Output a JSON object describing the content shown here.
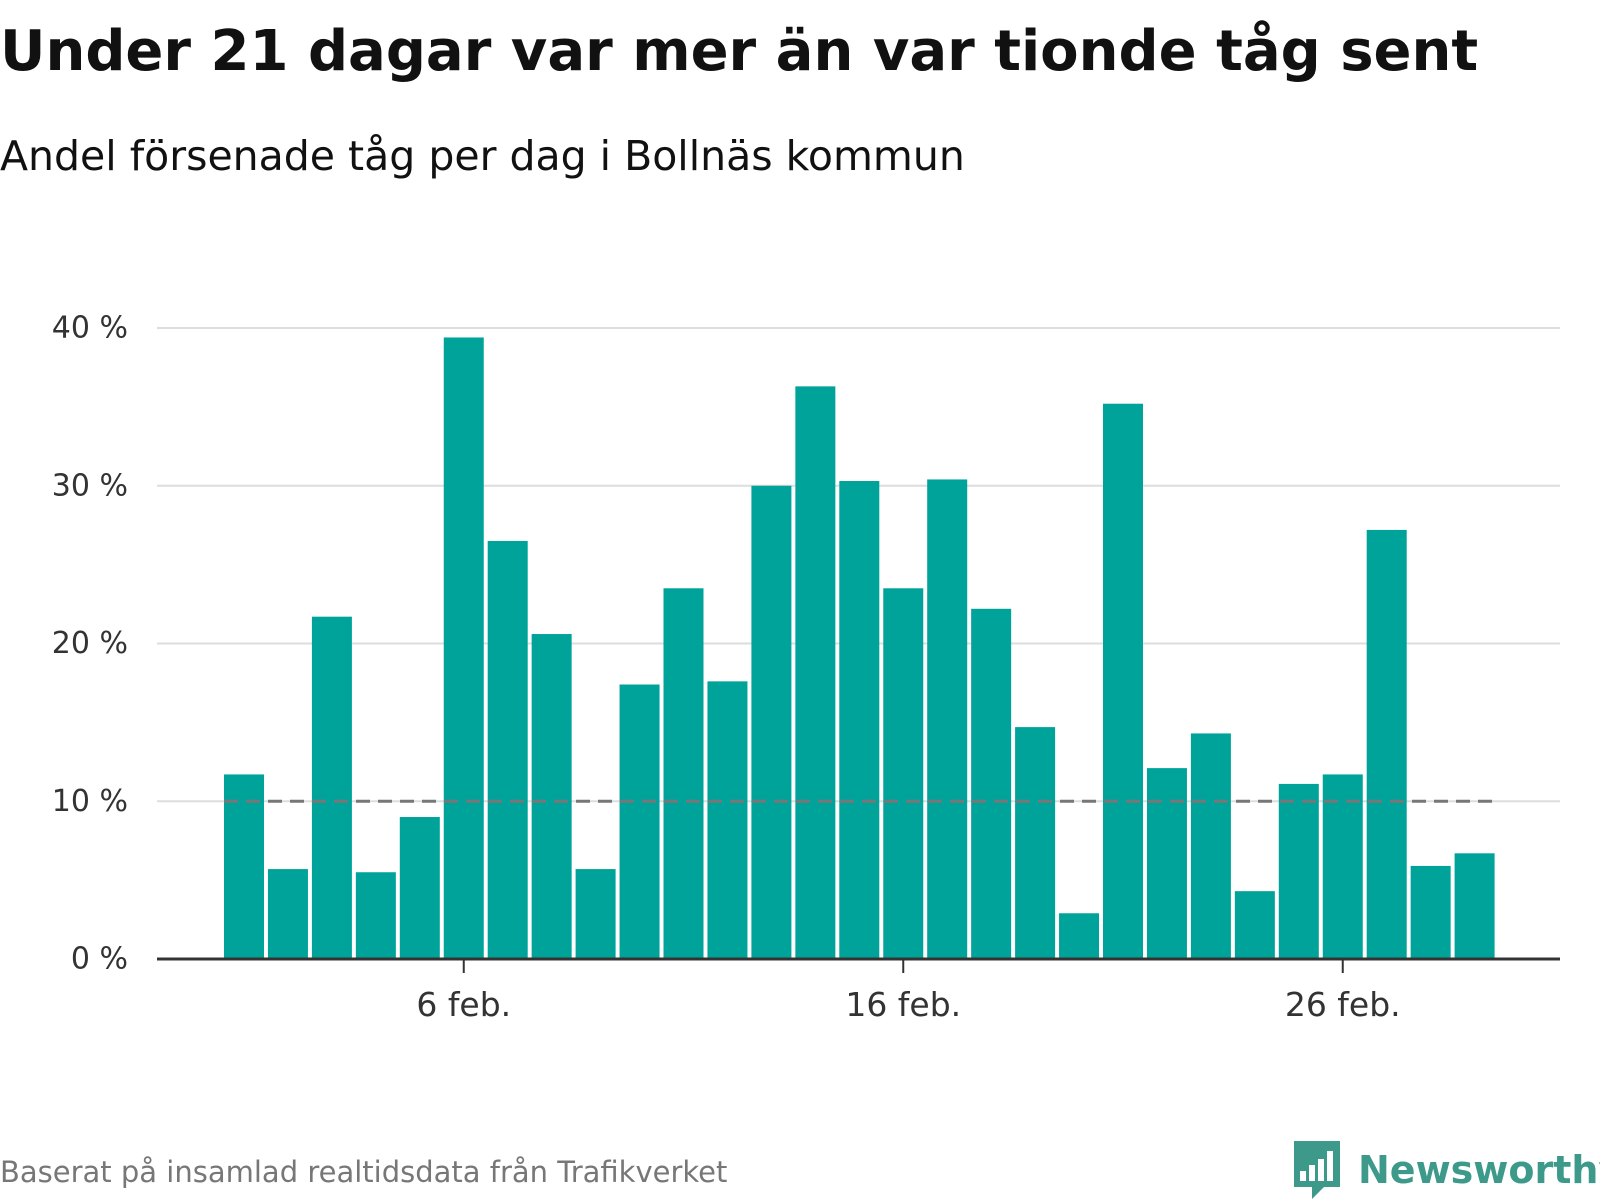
{
  "title": "Under 21 dagar var mer än var tionde tåg sent",
  "subtitle": "Andel försenade tåg per dag i Bollnäs kommun",
  "source": "Baserat på insamlad realtidsdata från Trafikverket",
  "brand": {
    "name": "Newsworthy",
    "color": "#3d9a8b"
  },
  "chart_data": {
    "type": "bar",
    "title": "Under 21 dagar var mer än var tionde tåg sent",
    "subtitle": "Andel försenade tåg per dag i Bollnäs kommun",
    "x_start_day": 1,
    "x_ticks": [
      {
        "day": 6,
        "label": "6 feb."
      },
      {
        "day": 16,
        "label": "16 feb."
      },
      {
        "day": 26,
        "label": "26 feb."
      }
    ],
    "y_ticks": [
      {
        "value": 0,
        "label": "0 %"
      },
      {
        "value": 10,
        "label": "10 %"
      },
      {
        "value": 20,
        "label": "20 %"
      },
      {
        "value": 30,
        "label": "30 %"
      },
      {
        "value": 40,
        "label": "40 %"
      }
    ],
    "ylim": [
      0,
      40
    ],
    "grid": true,
    "values": [
      11.7,
      5.7,
      21.7,
      5.5,
      9.0,
      39.4,
      26.5,
      20.6,
      5.7,
      17.4,
      23.5,
      17.6,
      30.0,
      36.3,
      30.3,
      23.5,
      30.4,
      22.2,
      14.7,
      2.9,
      35.2,
      12.1,
      14.3,
      4.3,
      11.1,
      11.7,
      27.2,
      5.9,
      6.7
    ],
    "reference_line": {
      "value": 10,
      "style": "dashed",
      "color": "#777777"
    },
    "bar_color": "#00a399",
    "axis_color": "#333333",
    "grid_color": "#dddddd",
    "tick_text_color": "#333333"
  }
}
